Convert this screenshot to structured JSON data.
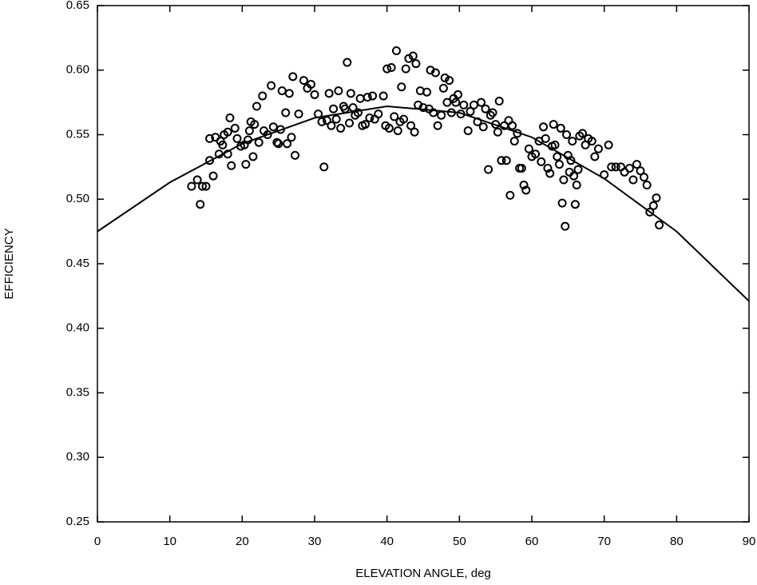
{
  "chart_data": {
    "type": "scatter",
    "xlabel": "ELEVATION ANGLE, deg",
    "ylabel": "EFFICIENCY",
    "xlim": [
      0,
      90
    ],
    "ylim": [
      0.25,
      0.65
    ],
    "xticks": [
      0,
      10,
      20,
      30,
      40,
      50,
      60,
      70,
      80,
      90
    ],
    "yticks": [
      0.25,
      {
        "value": 0.3,
        "label": "0.30"
      },
      0.35,
      {
        "value": 0.4,
        "label": "0.40"
      },
      0.45,
      {
        "value": 0.5,
        "label": "0.50"
      },
      0.55,
      {
        "value": 0.6,
        "label": "0.60"
      },
      0.65
    ],
    "series": [
      {
        "mode": "markers",
        "color": "#000000",
        "x": [
          13.0,
          13.8,
          14.2,
          14.5,
          15.0,
          15.5,
          15.5,
          16.0,
          16.3,
          16.8,
          17.0,
          17.3,
          17.5,
          18.0,
          18.0,
          18.3,
          18.5,
          19.0,
          19.3,
          19.8,
          20.3,
          20.5,
          20.8,
          21.0,
          21.2,
          21.5,
          21.7,
          22.0,
          22.3,
          22.8,
          23.0,
          23.5,
          24.0,
          24.3,
          24.8,
          25.0,
          25.3,
          25.5,
          26.0,
          26.2,
          26.5,
          26.8,
          27.0,
          27.3,
          27.8,
          28.5,
          29.0,
          29.5,
          30.0,
          30.5,
          31.0,
          31.3,
          31.7,
          32.0,
          32.3,
          32.6,
          33.0,
          33.3,
          33.6,
          34.0,
          34.2,
          34.5,
          34.8,
          35.0,
          35.3,
          35.6,
          36.0,
          36.3,
          36.6,
          37.0,
          37.3,
          37.6,
          38.0,
          38.3,
          38.8,
          39.5,
          39.8,
          40.0,
          40.3,
          40.6,
          41.0,
          41.3,
          41.5,
          41.8,
          42.0,
          42.3,
          42.6,
          43.0,
          43.3,
          43.6,
          43.8,
          44.0,
          44.3,
          44.6,
          45.0,
          45.5,
          45.8,
          46.0,
          46.4,
          46.7,
          47.0,
          47.5,
          47.8,
          48.0,
          48.3,
          48.6,
          48.9,
          49.2,
          49.5,
          49.8,
          50.2,
          50.6,
          51.2,
          51.5,
          52.0,
          52.5,
          53.0,
          53.3,
          53.6,
          54.0,
          54.3,
          54.6,
          55.0,
          55.3,
          55.5,
          55.8,
          56.2,
          56.5,
          56.8,
          57.0,
          57.3,
          57.6,
          58.0,
          58.3,
          58.6,
          58.9,
          59.2,
          59.6,
          60.0,
          60.5,
          61.0,
          61.3,
          61.6,
          61.9,
          62.2,
          62.5,
          62.8,
          63.0,
          63.2,
          63.5,
          63.8,
          64.0,
          64.2,
          64.4,
          64.6,
          64.8,
          65.0,
          65.2,
          65.4,
          65.6,
          65.8,
          66.0,
          66.2,
          66.4,
          66.6,
          67.0,
          67.4,
          67.8,
          68.3,
          68.7,
          69.2,
          70.0,
          70.6,
          71.0,
          71.6,
          72.3,
          72.8,
          73.5,
          74.0,
          74.5,
          75.0,
          75.5,
          75.9,
          76.3,
          76.8,
          77.2,
          77.6
        ],
        "values": [
          0.51,
          0.515,
          0.496,
          0.51,
          0.51,
          0.53,
          0.547,
          0.518,
          0.548,
          0.535,
          0.545,
          0.542,
          0.55,
          0.552,
          0.535,
          0.563,
          0.526,
          0.555,
          0.547,
          0.541,
          0.542,
          0.527,
          0.546,
          0.553,
          0.56,
          0.533,
          0.558,
          0.572,
          0.544,
          0.58,
          0.553,
          0.55,
          0.588,
          0.556,
          0.544,
          0.543,
          0.554,
          0.584,
          0.567,
          0.543,
          0.582,
          0.548,
          0.595,
          0.534,
          0.566,
          0.592,
          0.586,
          0.589,
          0.581,
          0.566,
          0.56,
          0.525,
          0.561,
          0.582,
          0.557,
          0.57,
          0.562,
          0.584,
          0.555,
          0.572,
          0.57,
          0.606,
          0.559,
          0.582,
          0.571,
          0.565,
          0.567,
          0.578,
          0.557,
          0.558,
          0.579,
          0.563,
          0.58,
          0.562,
          0.566,
          0.58,
          0.557,
          0.601,
          0.555,
          0.602,
          0.564,
          0.615,
          0.553,
          0.56,
          0.587,
          0.562,
          0.601,
          0.609,
          0.557,
          0.611,
          0.552,
          0.605,
          0.573,
          0.584,
          0.571,
          0.583,
          0.57,
          0.6,
          0.567,
          0.598,
          0.557,
          0.565,
          0.586,
          0.594,
          0.575,
          0.592,
          0.567,
          0.578,
          0.575,
          0.581,
          0.566,
          0.573,
          0.553,
          0.568,
          0.573,
          0.56,
          0.575,
          0.556,
          0.57,
          0.523,
          0.565,
          0.567,
          0.558,
          0.552,
          0.576,
          0.53,
          0.557,
          0.53,
          0.561,
          0.503,
          0.557,
          0.545,
          0.551,
          0.524,
          0.524,
          0.511,
          0.507,
          0.539,
          0.533,
          0.535,
          0.545,
          0.529,
          0.556,
          0.547,
          0.524,
          0.52,
          0.541,
          0.558,
          0.542,
          0.533,
          0.527,
          0.555,
          0.497,
          0.515,
          0.479,
          0.55,
          0.534,
          0.521,
          0.53,
          0.545,
          0.518,
          0.496,
          0.511,
          0.523,
          0.549,
          0.551,
          0.542,
          0.547,
          0.545,
          0.533,
          0.539,
          0.519,
          0.542,
          0.525,
          0.525,
          0.525,
          0.521,
          0.524,
          0.515,
          0.527,
          0.522,
          0.517,
          0.511,
          0.49,
          0.495,
          0.501,
          0.48
        ]
      },
      {
        "mode": "line",
        "color": "#000000",
        "x": [
          0,
          10,
          20,
          30,
          40,
          50,
          60,
          70,
          80,
          90
        ],
        "values": [
          0.475,
          0.513,
          0.543,
          0.563,
          0.572,
          0.567,
          0.548,
          0.516,
          0.475,
          0.421
        ]
      }
    ]
  }
}
